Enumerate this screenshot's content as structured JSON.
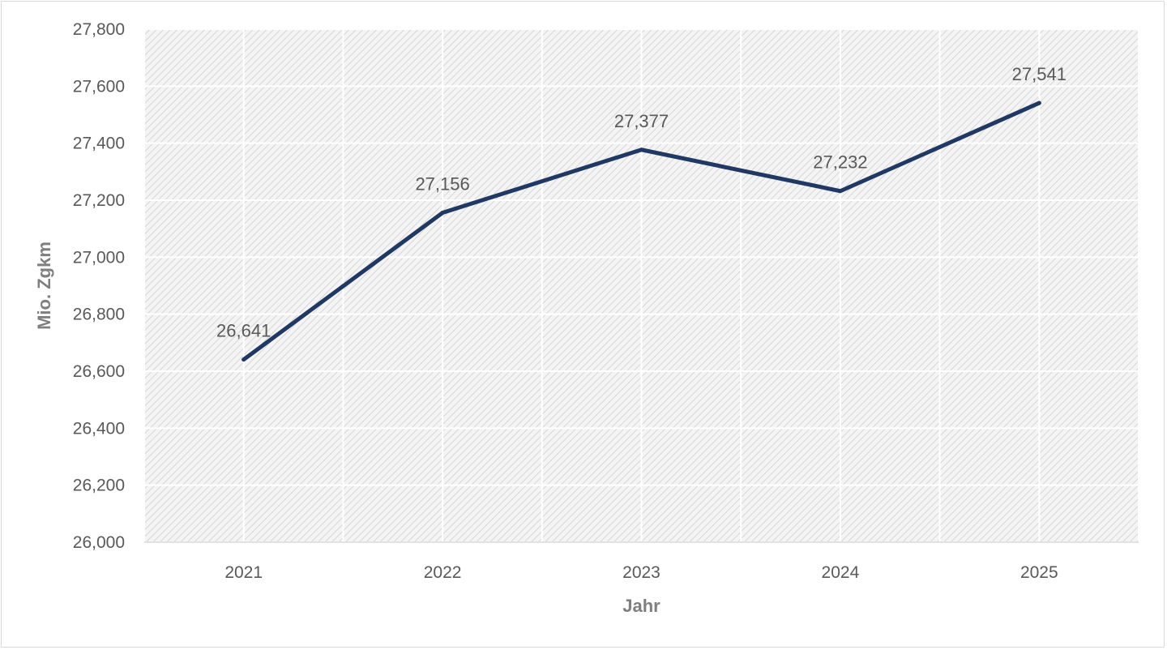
{
  "chart_data": {
    "type": "line",
    "title": "",
    "xlabel": "Jahr",
    "ylabel": "Mio. Zgkm",
    "categories": [
      "2021",
      "2022",
      "2023",
      "2024",
      "2025"
    ],
    "series": [
      {
        "values": [
          26641,
          27156,
          27377,
          27232,
          27541
        ],
        "labels": [
          "26,641",
          "27,156",
          "27,377",
          "27,232",
          "27,541"
        ]
      }
    ],
    "ylim": [
      26000,
      27800
    ],
    "yticks": [
      26000,
      26200,
      26400,
      26600,
      26800,
      27000,
      27200,
      27400,
      27600,
      27800
    ],
    "ytick_labels": [
      "26,000",
      "26,200",
      "26,400",
      "26,600",
      "26,800",
      "27,000",
      "27,200",
      "27,400",
      "27,600",
      "27,800"
    ],
    "grid": true,
    "legend": "none",
    "colors": {
      "line": "#1f3864",
      "plot_background": "#f2f2f2",
      "hatch": "#d9d9d9",
      "gridline": "#ffffff",
      "text": "#595959",
      "axis_title": "#7f7f7f"
    }
  }
}
